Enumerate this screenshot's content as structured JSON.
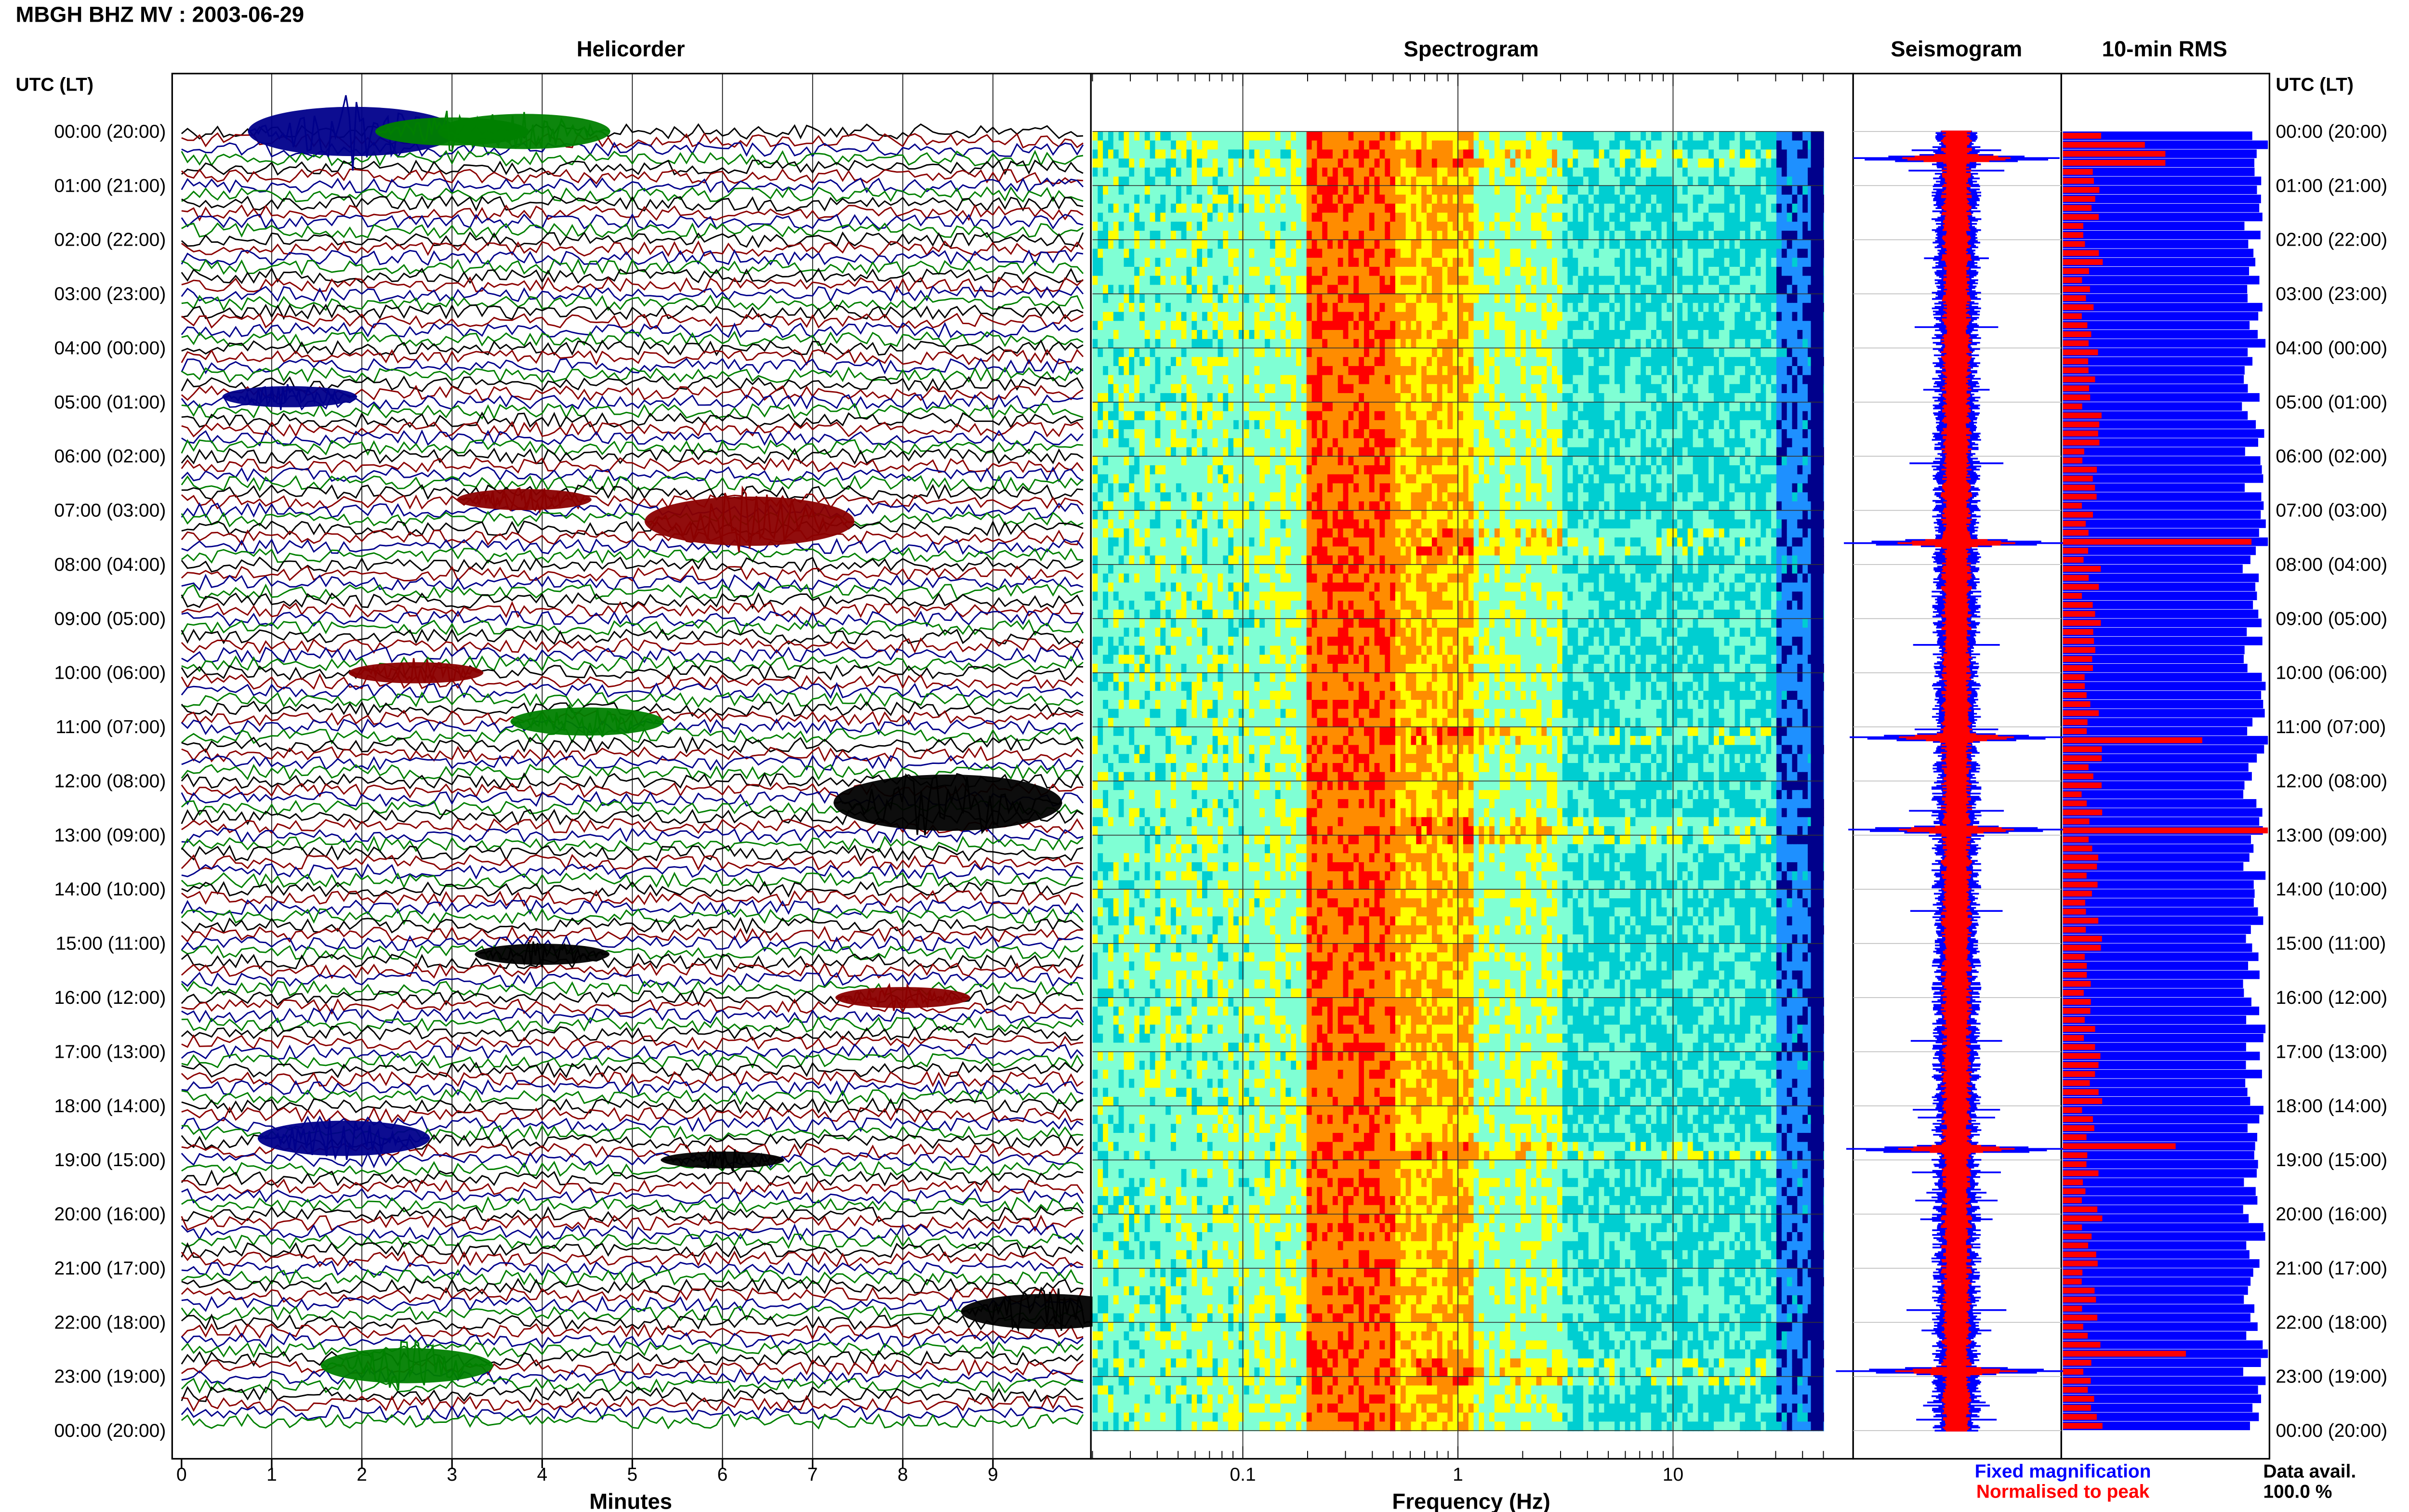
{
  "header": {
    "station_title": "MBGH BHZ MV : 2003-06-29",
    "utc_lt_label": "UTC (LT)"
  },
  "panels": {
    "helicorder": "Helicorder",
    "spectrogram": "Spectrogram",
    "seismogram": "Seismogram",
    "rms": "10-min RMS"
  },
  "time_labels": [
    "00:00 (20:00)",
    "01:00 (21:00)",
    "02:00 (22:00)",
    "03:00 (23:00)",
    "04:00 (00:00)",
    "05:00 (01:00)",
    "06:00 (02:00)",
    "07:00 (03:00)",
    "08:00 (04:00)",
    "09:00 (05:00)",
    "10:00 (06:00)",
    "11:00 (07:00)",
    "12:00 (08:00)",
    "13:00 (09:00)",
    "14:00 (10:00)",
    "15:00 (11:00)",
    "16:00 (12:00)",
    "17:00 (13:00)",
    "18:00 (14:00)",
    "19:00 (15:00)",
    "20:00 (16:00)",
    "21:00 (17:00)",
    "22:00 (18:00)",
    "23:00 (19:00)",
    "00:00 (20:00)"
  ],
  "legend": {
    "fixed_magnification": "Fixed magnification",
    "normalised_to_peak": "Normalised to peak",
    "data_avail_label": "Data avail.",
    "data_avail_value": "100.0 %"
  },
  "colors": {
    "helicorder_traces": [
      "#000000",
      "#8b0000",
      "#00008b",
      "#008000"
    ],
    "fixed_magnification": "#0000ff",
    "normalised_to_peak": "#ff0000",
    "spectrogram_scale": [
      "#00008b",
      "#1e90ff",
      "#00ced1",
      "#7fffd4",
      "#ffff00",
      "#ff8c00",
      "#ff0000"
    ]
  },
  "chart_data": [
    {
      "type": "line",
      "panel": "helicorder",
      "xlabel": "Minutes",
      "ylabel": "UTC (LT)",
      "xlim": [
        0,
        10
      ],
      "x_ticks": [
        "0",
        "1",
        "2",
        "3",
        "4",
        "5",
        "6",
        "7",
        "8",
        "9"
      ],
      "rows_per_hour": 6,
      "hours": 24,
      "events": [
        {
          "hour": 0.0,
          "minute": 1.9,
          "amplitude": 3.5,
          "color_index": 2
        },
        {
          "hour": 0.0,
          "minute": 3.0,
          "amplitude": 2.0,
          "color_index": 3
        },
        {
          "hour": 0.0,
          "minute": 3.8,
          "amplitude": 2.5,
          "color_index": 3
        },
        {
          "hour": 4.9,
          "minute": 1.2,
          "amplitude": 1.5,
          "color_index": 2
        },
        {
          "hour": 6.8,
          "minute": 3.8,
          "amplitude": 1.5,
          "color_index": 1
        },
        {
          "hour": 7.2,
          "minute": 6.3,
          "amplitude": 3.5,
          "color_index": 1
        },
        {
          "hour": 10.0,
          "minute": 2.6,
          "amplitude": 1.5,
          "color_index": 1
        },
        {
          "hour": 10.9,
          "minute": 4.5,
          "amplitude": 2.0,
          "color_index": 3
        },
        {
          "hour": 12.4,
          "minute": 8.5,
          "amplitude": 4.0,
          "color_index": 0
        },
        {
          "hour": 15.2,
          "minute": 4.0,
          "amplitude": 1.5,
          "color_index": 0
        },
        {
          "hour": 16.0,
          "minute": 8.0,
          "amplitude": 1.5,
          "color_index": 1
        },
        {
          "hour": 18.6,
          "minute": 1.8,
          "amplitude": 2.5,
          "color_index": 2
        },
        {
          "hour": 19.0,
          "minute": 6.0,
          "amplitude": 1.2,
          "color_index": 0
        },
        {
          "hour": 21.8,
          "minute": 9.6,
          "amplitude": 2.5,
          "color_index": 0
        },
        {
          "hour": 22.8,
          "minute": 2.5,
          "amplitude": 2.5,
          "color_index": 3
        }
      ]
    },
    {
      "type": "heatmap",
      "panel": "spectrogram",
      "xlabel": "Frequency (Hz)",
      "x_scale": "log",
      "xlim": [
        0.02,
        50
      ],
      "x_tick_labels": [
        "0.1",
        "1",
        "10"
      ],
      "x_tick_values": [
        0.1,
        1,
        10
      ],
      "peak_band_hz": [
        0.2,
        0.5
      ],
      "low_energy_above_hz": 30
    },
    {
      "type": "line",
      "panel": "seismogram",
      "series": [
        {
          "name": "Fixed magnification",
          "color": "#0000ff"
        },
        {
          "name": "Normalised to peak",
          "color": "#ff0000"
        }
      ],
      "spikes_hours": [
        0.5,
        7.6,
        11.2,
        12.9,
        18.8,
        22.9
      ]
    },
    {
      "type": "bar",
      "panel": "rms",
      "orientation": "horizontal",
      "bins_per_hour": 6,
      "series": [
        {
          "name": "Fixed magnification",
          "color": "#0000ff",
          "typical_fraction": 0.93
        },
        {
          "name": "Normalised to peak",
          "color": "#ff0000",
          "typical_fraction": 0.13
        }
      ],
      "peak_bins": [
        {
          "hour": 0.3,
          "red": 0.4
        },
        {
          "hour": 0.5,
          "red": 0.5
        },
        {
          "hour": 7.6,
          "red": 0.92
        },
        {
          "hour": 11.2,
          "red": 0.68
        },
        {
          "hour": 12.9,
          "red": 1.0
        },
        {
          "hour": 18.8,
          "red": 0.55
        },
        {
          "hour": 22.6,
          "red": 0.6
        }
      ]
    }
  ]
}
